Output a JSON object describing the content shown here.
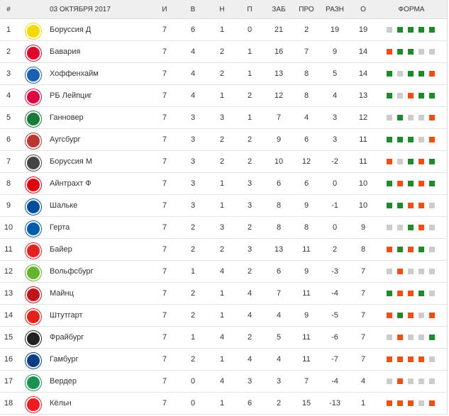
{
  "header": {
    "pos": "#",
    "date": "03 ОКТЯБРЯ 2017",
    "cols": [
      "И",
      "В",
      "Н",
      "П",
      "ЗАБ",
      "ПРО",
      "РАЗН",
      "О"
    ],
    "form": "ФОРМА"
  },
  "colors": {
    "win": "#1e8a2b",
    "loss": "#f04e16",
    "draw": "#cccccc"
  },
  "rows": [
    {
      "pos": "1",
      "team": "Боруссия Д",
      "logo": "#f5d800",
      "stats": [
        "7",
        "6",
        "1",
        "0",
        "21",
        "2",
        "19",
        "19"
      ],
      "form": "DWWWW"
    },
    {
      "pos": "2",
      "team": "Бавария",
      "logo": "#dc052d",
      "stats": [
        "7",
        "4",
        "2",
        "1",
        "16",
        "7",
        "9",
        "14"
      ],
      "form": "LWWDD"
    },
    {
      "pos": "3",
      "team": "Хоффенхайм",
      "logo": "#1961b5",
      "stats": [
        "7",
        "4",
        "2",
        "1",
        "13",
        "8",
        "5",
        "14"
      ],
      "form": "WDWWL"
    },
    {
      "pos": "4",
      "team": "РБ Лейпциг",
      "logo": "#dd0741",
      "stats": [
        "7",
        "4",
        "1",
        "2",
        "12",
        "8",
        "4",
        "13"
      ],
      "form": "WDLWW"
    },
    {
      "pos": "5",
      "team": "Ганновер",
      "logo": "#1a7a3a",
      "stats": [
        "7",
        "3",
        "3",
        "1",
        "7",
        "4",
        "3",
        "12"
      ],
      "form": "DWDDL"
    },
    {
      "pos": "6",
      "team": "Аугсбург",
      "logo": "#ba3733",
      "stats": [
        "7",
        "3",
        "2",
        "2",
        "9",
        "6",
        "3",
        "11"
      ],
      "form": "WWWDL"
    },
    {
      "pos": "7",
      "team": "Боруссия М",
      "logo": "#444444",
      "stats": [
        "7",
        "3",
        "2",
        "2",
        "10",
        "12",
        "-2",
        "11"
      ],
      "form": "LDWLW"
    },
    {
      "pos": "8",
      "team": "Айнтрахт Ф",
      "logo": "#e1000f",
      "stats": [
        "7",
        "3",
        "1",
        "3",
        "6",
        "6",
        "0",
        "10"
      ],
      "form": "WLWLW"
    },
    {
      "pos": "9",
      "team": "Шальке",
      "logo": "#004d9d",
      "stats": [
        "7",
        "3",
        "1",
        "3",
        "8",
        "9",
        "-1",
        "10"
      ],
      "form": "WWLLD"
    },
    {
      "pos": "10",
      "team": "Герта",
      "logo": "#005ca9",
      "stats": [
        "7",
        "2",
        "3",
        "2",
        "8",
        "8",
        "0",
        "9"
      ],
      "form": "DDWLD"
    },
    {
      "pos": "11",
      "team": "Байер",
      "logo": "#e32221",
      "stats": [
        "7",
        "2",
        "2",
        "3",
        "13",
        "11",
        "2",
        "8"
      ],
      "form": "LWLWD"
    },
    {
      "pos": "12",
      "team": "Вольфсбург",
      "logo": "#65b32e",
      "stats": [
        "7",
        "1",
        "4",
        "2",
        "6",
        "9",
        "-3",
        "7"
      ],
      "form": "DLDDD"
    },
    {
      "pos": "13",
      "team": "Майнц",
      "logo": "#c3141e",
      "stats": [
        "7",
        "2",
        "1",
        "4",
        "7",
        "11",
        "-4",
        "7"
      ],
      "form": "WLLWD"
    },
    {
      "pos": "14",
      "team": "Штутгарт",
      "logo": "#e32219",
      "stats": [
        "7",
        "2",
        "1",
        "4",
        "4",
        "9",
        "-5",
        "7"
      ],
      "form": "LWLDL"
    },
    {
      "pos": "15",
      "team": "Фрайбург",
      "logo": "#222222",
      "stats": [
        "7",
        "1",
        "4",
        "2",
        "5",
        "11",
        "-6",
        "7"
      ],
      "form": "DLDDW"
    },
    {
      "pos": "16",
      "team": "Гамбург",
      "logo": "#0a3f86",
      "stats": [
        "7",
        "2",
        "1",
        "4",
        "4",
        "11",
        "-7",
        "7"
      ],
      "form": "LLLLD"
    },
    {
      "pos": "17",
      "team": "Вердер",
      "logo": "#1d9053",
      "stats": [
        "7",
        "0",
        "4",
        "3",
        "3",
        "7",
        "-4",
        "4"
      ],
      "form": "DLDDD"
    },
    {
      "pos": "18",
      "team": "Кёльн",
      "logo": "#ed1c24",
      "stats": [
        "7",
        "0",
        "1",
        "6",
        "2",
        "15",
        "-13",
        "1"
      ],
      "form": "LLLDL"
    }
  ]
}
